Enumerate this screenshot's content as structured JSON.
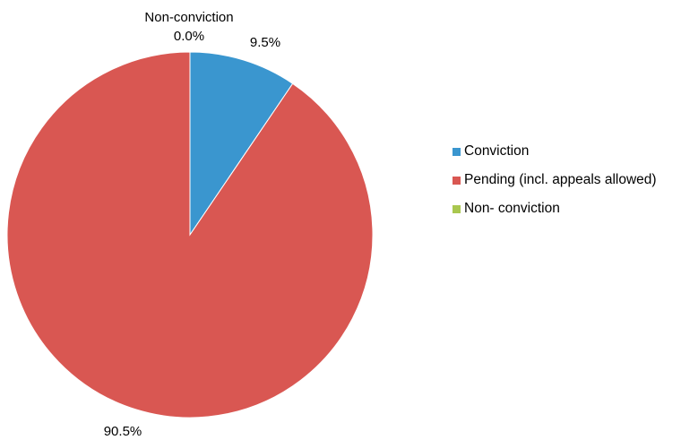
{
  "chart_data": {
    "type": "pie",
    "title": "",
    "categories": [
      "Conviction",
      "Pending (incl. appeals allowed)",
      "Non- conviction"
    ],
    "values": [
      9.5,
      90.5,
      0.0
    ],
    "colors": [
      "#3A96CF",
      "#D95752",
      "#A9C74F"
    ],
    "data_labels": [
      "9.5%",
      "90.5%",
      "0.0%"
    ],
    "data_label_category": "Non-conviction",
    "legend_position": "right",
    "start_angle": "12 o'clock, clockwise"
  }
}
